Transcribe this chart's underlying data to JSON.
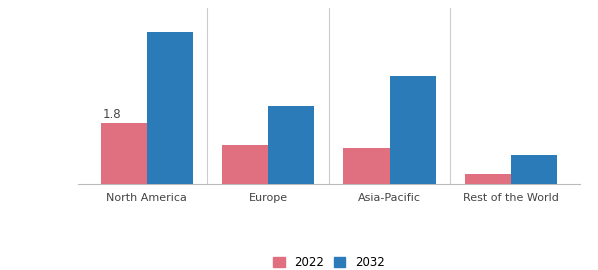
{
  "categories": [
    "North America",
    "Europe",
    "Asia-Pacific",
    "Rest of the World"
  ],
  "values_2022": [
    1.8,
    1.15,
    1.05,
    0.28
  ],
  "values_2032": [
    4.5,
    2.3,
    3.2,
    0.85
  ],
  "color_2022": "#E07080",
  "color_2032": "#2B7BB9",
  "label_2022": "2022",
  "label_2032": "2032",
  "annotation_text": "1.8",
  "annotation_bar_index": 0,
  "bar_width": 0.38,
  "ylim": [
    0,
    5.2
  ],
  "background_color": "#ffffff",
  "spine_color": "#bbbbbb",
  "separator_color": "#cccccc"
}
